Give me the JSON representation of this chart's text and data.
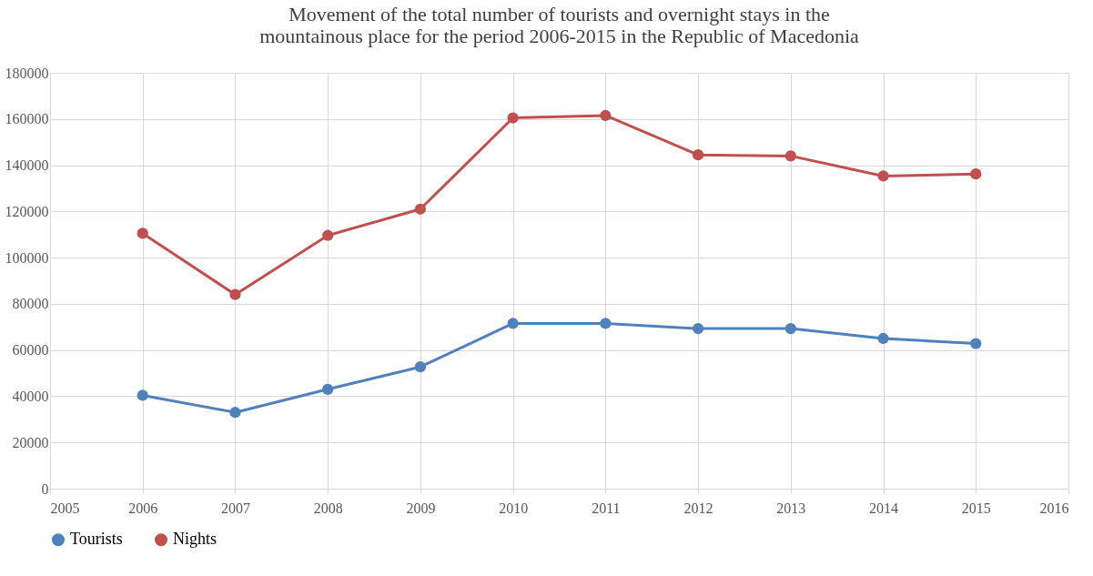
{
  "chart_data": {
    "type": "line",
    "title": [
      "Movement of the total number of tourists and overnight stays in the",
      "mountainous place for the period 2006-2015  in the Republic of Macedonia"
    ],
    "x": [
      2006,
      2007,
      2008,
      2009,
      2010,
      2011,
      2012,
      2013,
      2014,
      2015
    ],
    "series": [
      {
        "name": "Tourists",
        "color": "#4f81bd",
        "values": [
          40400,
          33000,
          43000,
          52700,
          71500,
          71500,
          69300,
          69300,
          65000,
          62800
        ]
      },
      {
        "name": "Nights",
        "color": "#c0504d",
        "values": [
          110500,
          84000,
          109600,
          121000,
          160500,
          161500,
          144500,
          144000,
          135300,
          136200
        ]
      }
    ],
    "xlim": [
      2005,
      2016
    ],
    "xticks": [
      2005,
      2006,
      2007,
      2008,
      2009,
      2010,
      2011,
      2012,
      2013,
      2014,
      2015,
      2016
    ],
    "ylim": [
      0,
      180000
    ],
    "yticks": [
      0,
      20000,
      40000,
      60000,
      80000,
      100000,
      120000,
      140000,
      160000,
      180000
    ],
    "grid": true,
    "legend": "bottom",
    "marker": "circle",
    "line_style": "solid"
  }
}
